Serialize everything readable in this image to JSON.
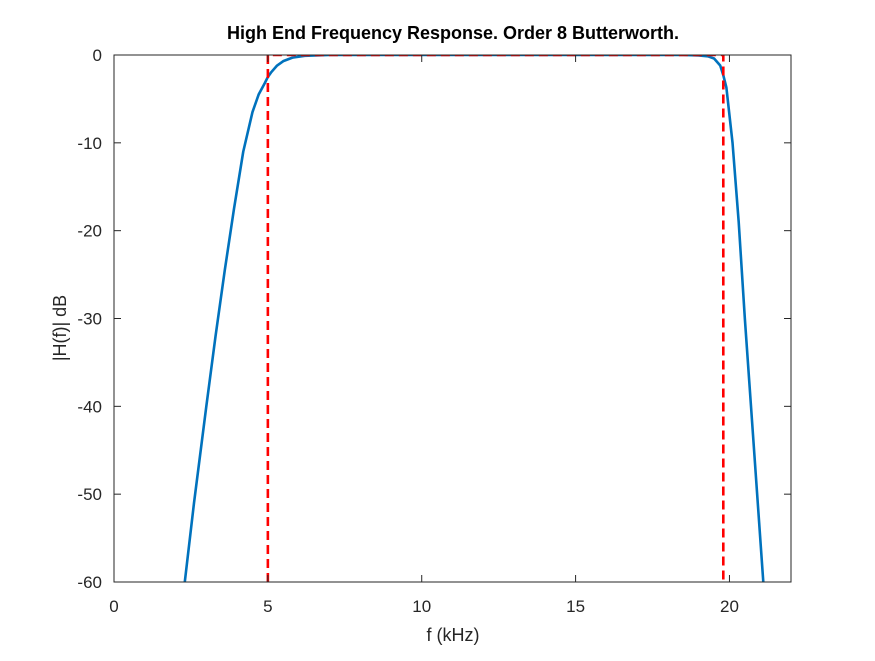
{
  "chart_data": {
    "type": "line",
    "title": "High End Frequency Response. Order 8 Butterworth.",
    "xlabel": "f (kHz)",
    "ylabel": "|H(f)| dB",
    "xlim": [
      0,
      22
    ],
    "ylim": [
      -60,
      0
    ],
    "x_ticks": [
      0,
      5,
      10,
      15,
      20
    ],
    "y_ticks": [
      0,
      -10,
      -20,
      -30,
      -40,
      -50,
      -60
    ],
    "grid": false,
    "legend": "none",
    "series": [
      {
        "style": "solid",
        "color": "#0072BD",
        "x": [
          2.3,
          2.6,
          3.0,
          3.3,
          3.6,
          3.9,
          4.2,
          4.5,
          4.7,
          4.9,
          5.0,
          5.1,
          5.3,
          5.5,
          5.8,
          6.2,
          7,
          10,
          15,
          18.5,
          19.0,
          19.3,
          19.5,
          19.7,
          19.8,
          19.9,
          20.1,
          20.3,
          20.5,
          20.7,
          20.9,
          21.1
        ],
        "y": [
          -60,
          -51,
          -40,
          -32,
          -24.5,
          -17.5,
          -11,
          -6.5,
          -4.5,
          -3.2,
          -2.5,
          -2.0,
          -1.2,
          -0.7,
          -0.3,
          -0.1,
          0,
          0,
          0,
          0,
          -0.05,
          -0.15,
          -0.4,
          -1.2,
          -2.3,
          -3.7,
          -10,
          -19,
          -30,
          -40,
          -50,
          -60
        ]
      },
      {
        "style": "dashed",
        "color": "#FF0000",
        "x": [
          5,
          5,
          19.8,
          19.8
        ],
        "y": [
          -60,
          0,
          0,
          -60
        ]
      }
    ]
  }
}
